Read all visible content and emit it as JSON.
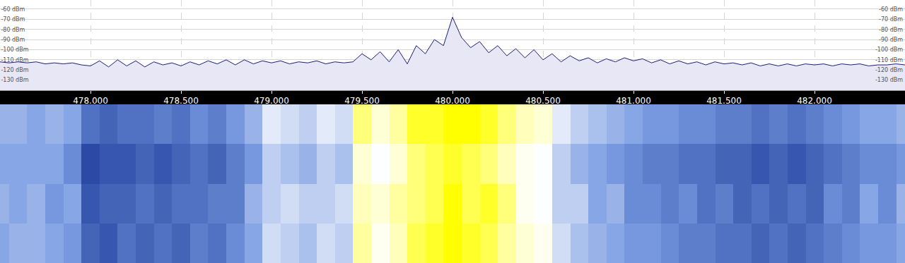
{
  "chart_data": [
    {
      "type": "line",
      "color": "#1c1c7a",
      "grid": true,
      "xlim": [
        477.5,
        482.5
      ],
      "xticks": [
        {
          "value": 478,
          "label": "478.000"
        },
        {
          "value": 478.5,
          "label": "478.500"
        },
        {
          "value": 479,
          "label": "479.000"
        },
        {
          "value": 479.5,
          "label": "479.500"
        },
        {
          "value": 480,
          "label": "480.000"
        },
        {
          "value": 480.5,
          "label": "480.500"
        },
        {
          "value": 481,
          "label": "481.000"
        },
        {
          "value": 481.5,
          "label": "481.500"
        },
        {
          "value": 482,
          "label": "482.000"
        }
      ],
      "ylim": [
        -140,
        -51
      ],
      "yticks": [
        {
          "value": -60,
          "label": "-60 dBm"
        },
        {
          "value": -70,
          "label": "-70 dBm"
        },
        {
          "value": -80,
          "label": "-80 dBm"
        },
        {
          "value": -90,
          "label": "-90 dBm"
        },
        {
          "value": -100,
          "label": "-100 dBm"
        },
        {
          "value": -110,
          "label": "-110 dBm"
        },
        {
          "value": -120,
          "label": "-120 dBm"
        },
        {
          "value": -130,
          "label": "-130 dBm"
        }
      ],
      "x": [
        477.5,
        477.55,
        477.6,
        477.65,
        477.7,
        477.75,
        477.8,
        477.85,
        477.9,
        477.95,
        478.0,
        478.05,
        478.1,
        478.15,
        478.2,
        478.25,
        478.3,
        478.35,
        478.4,
        478.45,
        478.5,
        478.55,
        478.6,
        478.65,
        478.7,
        478.75,
        478.8,
        478.85,
        478.9,
        478.95,
        479.0,
        479.05,
        479.1,
        479.15,
        479.2,
        479.25,
        479.3,
        479.35,
        479.4,
        479.45,
        479.5,
        479.55,
        479.6,
        479.65,
        479.7,
        479.75,
        479.8,
        479.85,
        479.9,
        479.95,
        480.0,
        480.05,
        480.1,
        480.15,
        480.2,
        480.25,
        480.3,
        480.35,
        480.4,
        480.45,
        480.5,
        480.55,
        480.6,
        480.65,
        480.7,
        480.75,
        480.8,
        480.85,
        480.9,
        480.95,
        481.0,
        481.05,
        481.1,
        481.15,
        481.2,
        481.25,
        481.3,
        481.35,
        481.4,
        481.45,
        481.5,
        481.55,
        481.6,
        481.65,
        481.7,
        481.75,
        481.8,
        481.85,
        481.9,
        481.95,
        482.0,
        482.05,
        482.1,
        482.15,
        482.2,
        482.25,
        482.3,
        482.35,
        482.4,
        482.45,
        482.5
      ],
      "values": [
        -112,
        -113,
        -112,
        -113,
        -112,
        -114,
        -113,
        -114,
        -113,
        -115,
        -116,
        -111,
        -117,
        -110,
        -116,
        -111,
        -117,
        -112,
        -115,
        -113,
        -116,
        -112,
        -115,
        -111,
        -114,
        -110,
        -115,
        -110,
        -114,
        -111,
        -113,
        -111,
        -114,
        -112,
        -113,
        -111,
        -114,
        -112,
        -113,
        -112,
        -104,
        -110,
        -102,
        -112,
        -100,
        -114,
        -96,
        -104,
        -90,
        -96,
        -68,
        -88,
        -98,
        -92,
        -103,
        -96,
        -106,
        -99,
        -108,
        -100,
        -110,
        -104,
        -112,
        -106,
        -111,
        -108,
        -113,
        -109,
        -112,
        -108,
        -111,
        -109,
        -113,
        -110,
        -114,
        -111,
        -114,
        -112,
        -115,
        -112,
        -114,
        -113,
        -115,
        -113,
        -116,
        -114,
        -116,
        -114,
        -116,
        -114,
        -115,
        -114,
        -116,
        -114,
        -115,
        -114,
        -116,
        -115,
        -115,
        -114,
        -115
      ]
    },
    {
      "type": "heatmap",
      "tick_labels": false,
      "zlim": [
        -120,
        -95
      ],
      "x": [
        477.5,
        477.6,
        477.7,
        477.8,
        477.9,
        478.0,
        478.1,
        478.2,
        478.3,
        478.4,
        478.5,
        478.6,
        478.7,
        478.8,
        478.9,
        479.0,
        479.1,
        479.2,
        479.3,
        479.4,
        479.5,
        479.6,
        479.7,
        479.8,
        479.9,
        480.0,
        480.1,
        480.2,
        480.3,
        480.4,
        480.5,
        480.6,
        480.7,
        480.8,
        480.9,
        481.0,
        481.1,
        481.2,
        481.3,
        481.4,
        481.5,
        481.6,
        481.7,
        481.8,
        481.9,
        482.0,
        482.1,
        482.2,
        482.3,
        482.4,
        482.5
      ],
      "z": [
        [
          -112,
          -111,
          -111,
          -112,
          -113,
          -117,
          -118,
          -116,
          -117,
          -116,
          -117,
          -115,
          -116,
          -114,
          -112,
          -108,
          -109,
          -110,
          -108,
          -109,
          -99,
          -102,
          -100,
          -97,
          -96,
          -95,
          -96,
          -97,
          -99,
          -101,
          -102,
          -108,
          -110,
          -111,
          -112,
          -113,
          -113,
          -114,
          -115,
          -115,
          -116,
          -116,
          -117,
          -116,
          -117,
          -116,
          -115,
          -114,
          -113,
          -113,
          -112
        ],
        [
          -111,
          -112,
          -111,
          -113,
          -112,
          -118,
          -117,
          -117,
          -116,
          -117,
          -116,
          -116,
          -115,
          -115,
          -111,
          -109,
          -108,
          -109,
          -109,
          -108,
          -100,
          -101,
          -99,
          -98,
          -97,
          -95,
          -97,
          -96,
          -98,
          -102,
          -103,
          -109,
          -109,
          -112,
          -111,
          -114,
          -114,
          -115,
          -114,
          -116,
          -115,
          -117,
          -116,
          -117,
          -116,
          -117,
          -114,
          -115,
          -112,
          -114,
          -111
        ],
        [
          -112,
          -112,
          -112,
          -112,
          -114,
          -119,
          -118,
          -118,
          -117,
          -118,
          -117,
          -116,
          -117,
          -115,
          -113,
          -109,
          -110,
          -111,
          -109,
          -110,
          -101,
          -103,
          -101,
          -98,
          -97,
          -96,
          -97,
          -98,
          -100,
          -102,
          -103,
          -109,
          -111,
          -112,
          -113,
          -114,
          -115,
          -115,
          -116,
          -116,
          -117,
          -117,
          -118,
          -117,
          -118,
          -117,
          -116,
          -115,
          -114,
          -114,
          -113
        ],
        [
          -111,
          -111,
          -112,
          -111,
          -112,
          -116,
          -117,
          -116,
          -116,
          -115,
          -116,
          -114,
          -115,
          -113,
          -111,
          -107,
          -108,
          -109,
          -107,
          -108,
          -98,
          -101,
          -99,
          -96,
          -96,
          -95,
          -95,
          -96,
          -98,
          -100,
          -101,
          -107,
          -109,
          -110,
          -111,
          -112,
          -113,
          -113,
          -114,
          -114,
          -115,
          -115,
          -116,
          -115,
          -116,
          -115,
          -114,
          -113,
          -112,
          -112,
          -111
        ]
      ]
    }
  ]
}
